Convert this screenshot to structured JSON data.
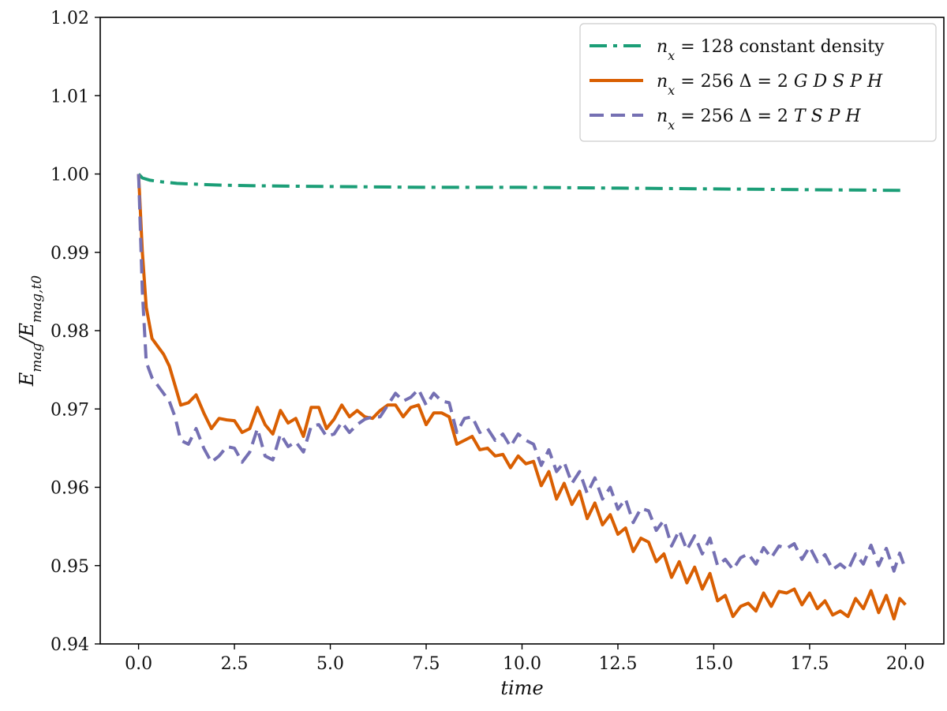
{
  "chart_data": {
    "type": "line",
    "title": "",
    "xlabel": "time",
    "ylabel": "E_mag / E_mag,t0",
    "xlim": [
      -1.0,
      21.0
    ],
    "ylim": [
      0.94,
      1.02
    ],
    "xticks": [
      "0.0",
      "2.5",
      "5.0",
      "7.5",
      "10.0",
      "12.5",
      "15.0",
      "17.5",
      "20.0"
    ],
    "yticks": [
      "0.94",
      "0.95",
      "0.96",
      "0.97",
      "0.98",
      "0.99",
      "1.00",
      "1.01",
      "1.02"
    ],
    "grid": false,
    "legend_position": "top-right",
    "series": [
      {
        "name": "n_x = 128 constant density",
        "color": "#1b9e77",
        "style": "dashdot",
        "x": [
          0.0,
          0.1,
          0.3,
          0.6,
          1.0,
          2.0,
          3.0,
          5.0,
          7.5,
          10.0,
          12.5,
          15.0,
          17.5,
          20.0
        ],
        "y": [
          1.0,
          0.9995,
          0.9992,
          0.999,
          0.9988,
          0.9986,
          0.9985,
          0.9984,
          0.9983,
          0.9983,
          0.9982,
          0.9981,
          0.998,
          0.9979
        ]
      },
      {
        "name": "n_x = 256 Δ = 2 GDSPH",
        "color": "#d95f02",
        "style": "solid",
        "x": [
          0.0,
          0.1,
          0.2,
          0.35,
          0.5,
          0.65,
          0.8,
          0.95,
          1.1,
          1.3,
          1.5,
          1.7,
          1.9,
          2.1,
          2.3,
          2.5,
          2.7,
          2.9,
          3.1,
          3.3,
          3.5,
          3.7,
          3.9,
          4.1,
          4.3,
          4.5,
          4.7,
          4.9,
          5.1,
          5.3,
          5.5,
          5.7,
          5.9,
          6.1,
          6.3,
          6.5,
          6.7,
          6.9,
          7.1,
          7.3,
          7.5,
          7.7,
          7.9,
          8.1,
          8.3,
          8.5,
          8.7,
          8.9,
          9.1,
          9.3,
          9.5,
          9.7,
          9.9,
          10.1,
          10.3,
          10.5,
          10.7,
          10.9,
          11.1,
          11.3,
          11.5,
          11.7,
          11.9,
          12.1,
          12.3,
          12.5,
          12.7,
          12.9,
          13.1,
          13.3,
          13.5,
          13.7,
          13.9,
          14.1,
          14.3,
          14.5,
          14.7,
          14.9,
          15.1,
          15.3,
          15.5,
          15.7,
          15.9,
          16.1,
          16.3,
          16.5,
          16.7,
          16.9,
          17.1,
          17.3,
          17.5,
          17.7,
          17.9,
          18.1,
          18.3,
          18.5,
          18.7,
          18.9,
          19.1,
          19.3,
          19.5,
          19.7,
          19.85,
          20.0
        ],
        "y": [
          1.0,
          0.99,
          0.983,
          0.979,
          0.978,
          0.977,
          0.9755,
          0.973,
          0.9705,
          0.9708,
          0.9718,
          0.9695,
          0.9675,
          0.9688,
          0.9686,
          0.9685,
          0.967,
          0.9675,
          0.9702,
          0.968,
          0.9668,
          0.9698,
          0.9682,
          0.9688,
          0.9665,
          0.9702,
          0.9702,
          0.9675,
          0.9687,
          0.9705,
          0.969,
          0.9698,
          0.969,
          0.9688,
          0.9698,
          0.9705,
          0.9705,
          0.969,
          0.9702,
          0.9705,
          0.968,
          0.9695,
          0.9695,
          0.969,
          0.9655,
          0.966,
          0.9665,
          0.9648,
          0.965,
          0.964,
          0.9642,
          0.9625,
          0.964,
          0.963,
          0.9633,
          0.9602,
          0.962,
          0.9585,
          0.9605,
          0.9578,
          0.9595,
          0.956,
          0.958,
          0.9552,
          0.9565,
          0.954,
          0.9548,
          0.9518,
          0.9535,
          0.953,
          0.9505,
          0.9515,
          0.9485,
          0.9505,
          0.9478,
          0.9498,
          0.947,
          0.949,
          0.9455,
          0.9462,
          0.9435,
          0.9448,
          0.9452,
          0.9442,
          0.9465,
          0.9448,
          0.9467,
          0.9465,
          0.947,
          0.945,
          0.9465,
          0.9445,
          0.9455,
          0.9437,
          0.9442,
          0.9435,
          0.9458,
          0.9445,
          0.9468,
          0.944,
          0.9462,
          0.9432,
          0.9458,
          0.945
        ]
      },
      {
        "name": "n_x = 256 Δ = 2 TSPH",
        "color": "#7570b3",
        "style": "dashed",
        "x": [
          0.0,
          0.1,
          0.2,
          0.35,
          0.5,
          0.65,
          0.8,
          0.95,
          1.1,
          1.3,
          1.5,
          1.7,
          1.9,
          2.1,
          2.3,
          2.5,
          2.7,
          2.9,
          3.1,
          3.3,
          3.5,
          3.7,
          3.9,
          4.1,
          4.3,
          4.5,
          4.7,
          4.9,
          5.1,
          5.3,
          5.5,
          5.7,
          5.9,
          6.1,
          6.3,
          6.5,
          6.7,
          6.9,
          7.1,
          7.3,
          7.5,
          7.7,
          7.9,
          8.1,
          8.3,
          8.5,
          8.7,
          8.9,
          9.1,
          9.3,
          9.5,
          9.7,
          9.9,
          10.1,
          10.3,
          10.5,
          10.7,
          10.9,
          11.1,
          11.3,
          11.5,
          11.7,
          11.9,
          12.1,
          12.3,
          12.5,
          12.7,
          12.9,
          13.1,
          13.3,
          13.5,
          13.7,
          13.9,
          14.1,
          14.3,
          14.5,
          14.7,
          14.9,
          15.1,
          15.3,
          15.5,
          15.7,
          15.9,
          16.1,
          16.3,
          16.5,
          16.7,
          16.9,
          17.1,
          17.3,
          17.5,
          17.7,
          17.9,
          18.1,
          18.3,
          18.5,
          18.7,
          18.9,
          19.1,
          19.3,
          19.5,
          19.7,
          19.85,
          20.0
        ],
        "y": [
          1.0,
          0.985,
          0.976,
          0.974,
          0.973,
          0.972,
          0.971,
          0.969,
          0.966,
          0.9655,
          0.9675,
          0.965,
          0.9632,
          0.964,
          0.9652,
          0.965,
          0.9632,
          0.9645,
          0.9675,
          0.964,
          0.9635,
          0.9668,
          0.9652,
          0.9658,
          0.9645,
          0.9678,
          0.968,
          0.9665,
          0.9668,
          0.9683,
          0.967,
          0.968,
          0.9687,
          0.969,
          0.969,
          0.9705,
          0.972,
          0.971,
          0.9715,
          0.9725,
          0.9705,
          0.972,
          0.971,
          0.9708,
          0.967,
          0.9688,
          0.969,
          0.967,
          0.9675,
          0.966,
          0.9668,
          0.9652,
          0.9668,
          0.966,
          0.9655,
          0.9628,
          0.9648,
          0.962,
          0.9632,
          0.9605,
          0.962,
          0.9592,
          0.9612,
          0.9585,
          0.96,
          0.9572,
          0.9585,
          0.9555,
          0.9573,
          0.957,
          0.9545,
          0.9558,
          0.9525,
          0.9545,
          0.952,
          0.9538,
          0.9515,
          0.9535,
          0.95,
          0.9508,
          0.9495,
          0.951,
          0.9515,
          0.9502,
          0.9523,
          0.951,
          0.9525,
          0.9522,
          0.9528,
          0.9508,
          0.9524,
          0.9505,
          0.9514,
          0.9495,
          0.9502,
          0.9494,
          0.9515,
          0.9502,
          0.9526,
          0.95,
          0.9522,
          0.9493,
          0.9516,
          0.9495
        ]
      }
    ]
  }
}
